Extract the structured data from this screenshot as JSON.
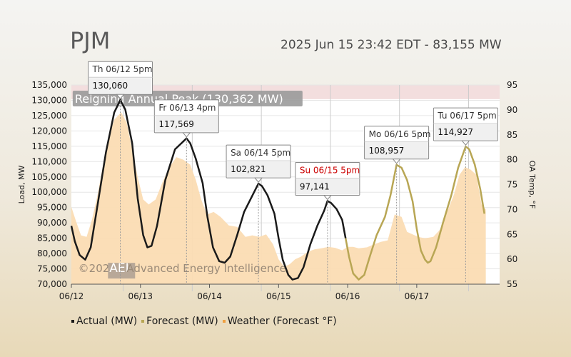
{
  "header": {
    "region": "PJM",
    "status": "2025 Jun 15 23:42 EDT - 83,155 MW"
  },
  "colors": {
    "actual": "#1a1a1a",
    "forecast": "#b8a654",
    "weather_fill": "#fbdcb3",
    "peak_band": "#f3dede",
    "annotation_red": "#cc0000"
  },
  "chart_data": {
    "type": "line",
    "xlabel": "",
    "ylabel": "Load, MW",
    "y2label": "OA Temp, °F",
    "ylim": [
      70000,
      135000
    ],
    "y2lim": [
      55,
      95
    ],
    "xlim": [
      0,
      6.2
    ],
    "x_ticks": [
      "06/12",
      "06/13",
      "06/14",
      "06/15",
      "06/16",
      "06/17"
    ],
    "y_ticks": [
      "135,000",
      "130,000",
      "125,000",
      "120,000",
      "115,000",
      "110,000",
      "105,000",
      "100,000",
      "95,000",
      "90,000",
      "85,000",
      "80,000",
      "75,000",
      "70,000"
    ],
    "y2_ticks": [
      "95",
      "90",
      "85",
      "80",
      "75",
      "70",
      "65",
      "60",
      "55"
    ],
    "grid": true,
    "legend_position": "bottom",
    "peak_band": {
      "from": 130362,
      "to": 135000,
      "label": "Reigning Annual Peak (130,362 MW)"
    },
    "watermark": {
      "copyright": "©2025",
      "logo": "AEI",
      "name": "Advanced Energy Intelligence"
    },
    "series": [
      {
        "name": "Actual (MW)",
        "points": [
          [
            0,
            89000
          ],
          [
            0.05,
            84000
          ],
          [
            0.12,
            79500
          ],
          [
            0.2,
            78000
          ],
          [
            0.28,
            82000
          ],
          [
            0.38,
            96000
          ],
          [
            0.5,
            113000
          ],
          [
            0.62,
            126000
          ],
          [
            0.708,
            130060
          ],
          [
            0.78,
            127000
          ],
          [
            0.88,
            116000
          ],
          [
            0.96,
            98000
          ],
          [
            1.04,
            86000
          ],
          [
            1.1,
            82000
          ],
          [
            1.16,
            82500
          ],
          [
            1.24,
            89000
          ],
          [
            1.36,
            104000
          ],
          [
            1.5,
            114000
          ],
          [
            1.667,
            117569
          ],
          [
            1.72,
            116000
          ],
          [
            1.8,
            111000
          ],
          [
            1.9,
            103000
          ],
          [
            1.97,
            92000
          ],
          [
            2.05,
            82000
          ],
          [
            2.14,
            77500
          ],
          [
            2.22,
            77000
          ],
          [
            2.3,
            79000
          ],
          [
            2.4,
            86000
          ],
          [
            2.5,
            93500
          ],
          [
            2.6,
            98000
          ],
          [
            2.667,
            101000
          ],
          [
            2.708,
            102821
          ],
          [
            2.76,
            102000
          ],
          [
            2.84,
            99000
          ],
          [
            2.94,
            93000
          ],
          [
            3.0,
            85000
          ],
          [
            3.06,
            78000
          ],
          [
            3.14,
            73000
          ],
          [
            3.2,
            71500
          ],
          [
            3.28,
            72000
          ],
          [
            3.36,
            75500
          ],
          [
            3.46,
            83000
          ],
          [
            3.56,
            89000
          ],
          [
            3.66,
            94000
          ],
          [
            3.708,
            97141
          ],
          [
            3.76,
            96500
          ],
          [
            3.84,
            94500
          ],
          [
            3.92,
            91000
          ],
          [
            3.97,
            85000
          ]
        ]
      },
      {
        "name": "Forecast (MW)",
        "points": [
          [
            3.97,
            85000
          ],
          [
            4.02,
            79000
          ],
          [
            4.08,
            73500
          ],
          [
            4.16,
            71500
          ],
          [
            4.24,
            73000
          ],
          [
            4.32,
            79000
          ],
          [
            4.42,
            86000
          ],
          [
            4.54,
            92000
          ],
          [
            4.62,
            99000
          ],
          [
            4.708,
            108957
          ],
          [
            4.78,
            108000
          ],
          [
            4.86,
            104000
          ],
          [
            4.94,
            97000
          ],
          [
            5.0,
            88000
          ],
          [
            5.06,
            81000
          ],
          [
            5.12,
            78000
          ],
          [
            5.16,
            77000
          ],
          [
            5.2,
            77500
          ],
          [
            5.28,
            82000
          ],
          [
            5.38,
            90000
          ],
          [
            5.5,
            99000
          ],
          [
            5.6,
            108000
          ],
          [
            5.708,
            114927
          ],
          [
            5.76,
            114000
          ],
          [
            5.84,
            109000
          ],
          [
            5.92,
            101000
          ],
          [
            5.98,
            93000
          ]
        ]
      },
      {
        "name": "Weather (Forecast °F)",
        "points": [
          [
            0,
            70.5
          ],
          [
            0.07,
            67.5
          ],
          [
            0.14,
            64.8
          ],
          [
            0.22,
            64.5
          ],
          [
            0.3,
            68
          ],
          [
            0.38,
            73
          ],
          [
            0.46,
            79
          ],
          [
            0.54,
            84.5
          ],
          [
            0.62,
            88
          ],
          [
            0.72,
            89.5
          ],
          [
            0.8,
            87.5
          ],
          [
            0.88,
            82
          ],
          [
            0.96,
            76.5
          ],
          [
            1.04,
            72
          ],
          [
            1.12,
            71
          ],
          [
            1.22,
            72
          ],
          [
            1.32,
            75.5
          ],
          [
            1.42,
            78.5
          ],
          [
            1.52,
            80.5
          ],
          [
            1.62,
            80
          ],
          [
            1.72,
            79
          ],
          [
            1.8,
            76
          ],
          [
            1.88,
            72
          ],
          [
            1.96,
            69
          ],
          [
            2.06,
            69.5
          ],
          [
            2.16,
            68.5
          ],
          [
            2.28,
            66.8
          ],
          [
            2.4,
            66.5
          ],
          [
            2.52,
            64.5
          ],
          [
            2.62,
            64.8
          ],
          [
            2.72,
            64.5
          ],
          [
            2.82,
            65
          ],
          [
            2.92,
            63
          ],
          [
            3.0,
            60
          ],
          [
            3.08,
            58.5
          ],
          [
            3.16,
            59
          ],
          [
            3.24,
            60
          ],
          [
            3.32,
            60.5
          ],
          [
            3.42,
            61.5
          ],
          [
            3.52,
            62
          ],
          [
            3.62,
            62.2
          ],
          [
            3.72,
            62.5
          ],
          [
            3.82,
            62.3
          ],
          [
            3.92,
            61.8
          ],
          [
            4.0,
            62.5
          ],
          [
            4.08,
            62.5
          ],
          [
            4.16,
            62.2
          ],
          [
            4.28,
            62.4
          ],
          [
            4.38,
            63
          ],
          [
            4.48,
            63.5
          ],
          [
            4.58,
            63.8
          ],
          [
            4.68,
            69
          ],
          [
            4.78,
            68.5
          ],
          [
            4.86,
            65.5
          ],
          [
            4.94,
            65
          ],
          [
            5.02,
            64.5
          ],
          [
            5.12,
            64.2
          ],
          [
            5.24,
            64.5
          ],
          [
            5.34,
            66
          ],
          [
            5.44,
            69.5
          ],
          [
            5.54,
            73
          ],
          [
            5.62,
            77
          ],
          [
            5.7,
            78.5
          ],
          [
            5.78,
            78
          ],
          [
            5.86,
            77
          ],
          [
            5.94,
            71
          ],
          [
            6.0,
            70
          ]
        ]
      }
    ],
    "annotations": [
      {
        "day": "Th 06/12 5pm",
        "value": "130,060",
        "x": 0.708,
        "y": 130060,
        "red": false
      },
      {
        "day": "Fr 06/13 4pm",
        "value": "117,569",
        "x": 1.667,
        "y": 117569,
        "red": false
      },
      {
        "day": "Sa 06/14 5pm",
        "value": "102,821",
        "x": 2.708,
        "y": 102821,
        "red": false
      },
      {
        "day": "Su 06/15 5pm",
        "value": "97,141",
        "x": 3.708,
        "y": 97141,
        "red": true
      },
      {
        "day": "Mo 06/16 5pm",
        "value": "108,957",
        "x": 4.708,
        "y": 108957,
        "red": false
      },
      {
        "day": "Tu 06/17 5pm",
        "value": "114,927",
        "x": 5.708,
        "y": 114927,
        "red": false
      }
    ]
  }
}
